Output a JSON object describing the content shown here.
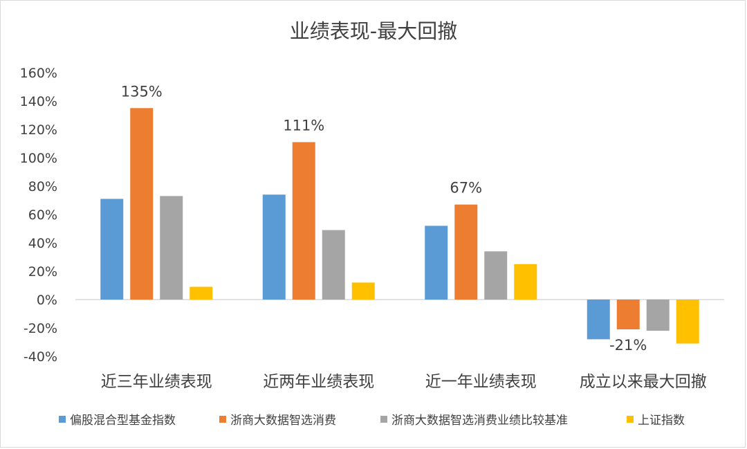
{
  "chart_data": {
    "type": "bar",
    "title": "业绩表现-最大回撤",
    "categories": [
      "近三年业绩表现",
      "近两年业绩表现",
      "近一年业绩表现",
      "成立以来最大回撤"
    ],
    "series": [
      {
        "name": "偏股混合型基金指数",
        "color": "#5B9BD5",
        "values": [
          71,
          74,
          52,
          -28
        ]
      },
      {
        "name": "浙商大数据智选消费",
        "color": "#ED7D31",
        "values": [
          135,
          111,
          67,
          -21
        ]
      },
      {
        "name": "浙商大数据智选消费业绩比较基准",
        "color": "#A5A5A5",
        "values": [
          73,
          49,
          34,
          -22
        ]
      },
      {
        "name": "上证指数",
        "color": "#FFC000",
        "values": [
          9,
          12,
          25,
          -31
        ]
      }
    ],
    "data_labels": [
      {
        "series": 1,
        "category": 0,
        "text": "135%"
      },
      {
        "series": 1,
        "category": 1,
        "text": "111%"
      },
      {
        "series": 1,
        "category": 2,
        "text": "67%"
      },
      {
        "series": 1,
        "category": 3,
        "text": "-21%"
      }
    ],
    "y_ticks": [
      "160%",
      "140%",
      "120%",
      "100%",
      "80%",
      "60%",
      "40%",
      "20%",
      "0%",
      "-20%",
      "-40%"
    ],
    "ylim": [
      -40,
      160
    ],
    "ystep": 20,
    "legend_position": "bottom",
    "grid": false
  }
}
